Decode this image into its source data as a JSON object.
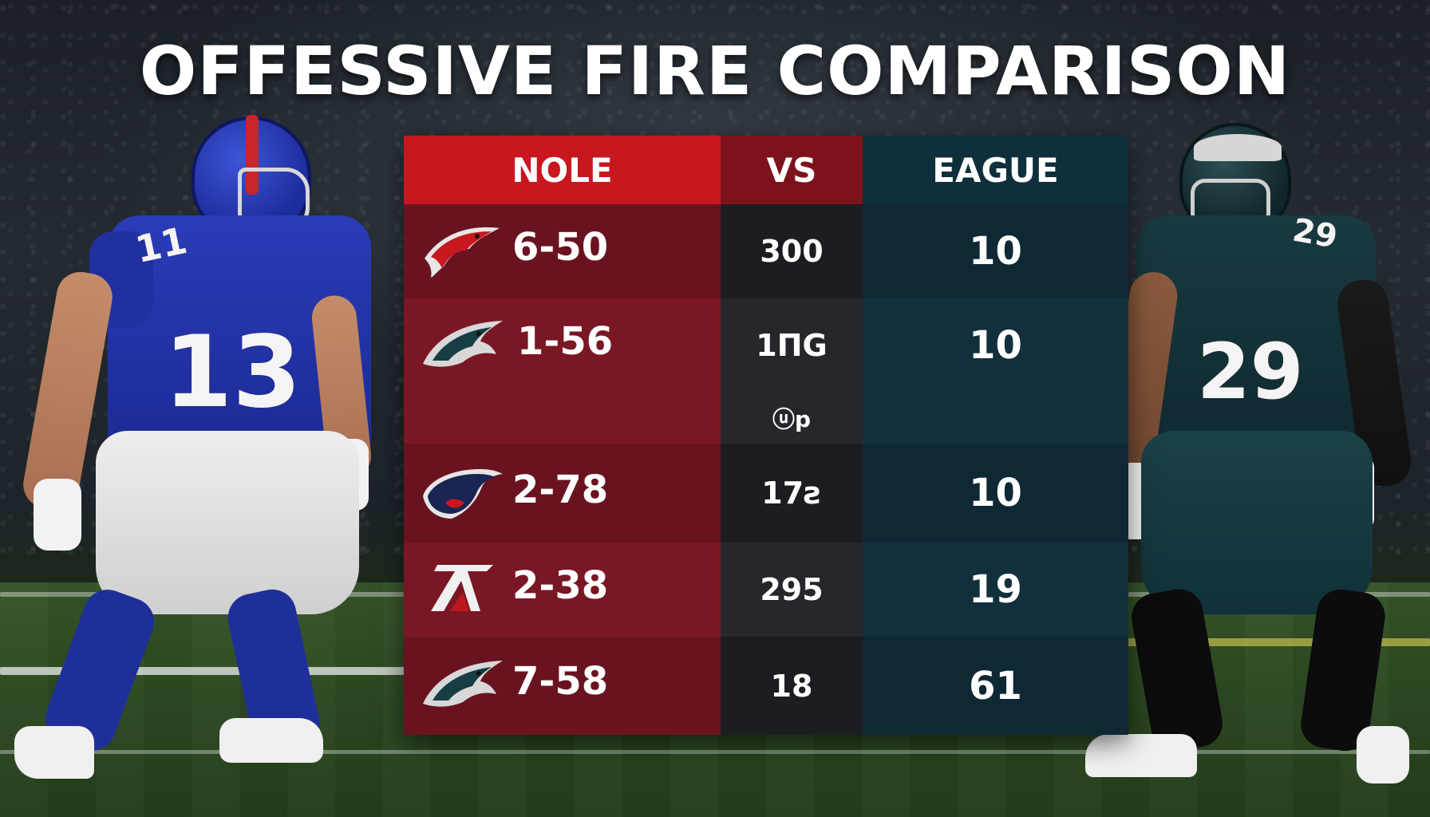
{
  "title": "OFFESSIVE FIRE COMPARISON",
  "colors": {
    "left_header": "#c8171f",
    "mid_header": "#7e121c",
    "right_header": "#0e2f3b",
    "left_body": "#6d1420",
    "mid_body": "#1e1f22",
    "right_body": "#0f2a36"
  },
  "players": {
    "left": {
      "jersey_number": "13",
      "shoulder_number": "11",
      "team_color": "#1e2f8c"
    },
    "right": {
      "jersey_number": "29",
      "shoulder_number": "29",
      "team_color": "#163238"
    }
  },
  "table": {
    "headers": {
      "left": "NOLE",
      "mid": "VS",
      "right": "EAGUE"
    },
    "rows": [
      {
        "logo": "falcon-logo-icon",
        "record": "6-50",
        "mid": "300",
        "right": "10"
      },
      {
        "logo": "eagle-logo-icon",
        "record": "1-56",
        "mid": "1ΠG",
        "right": "10"
      },
      {
        "logo": "",
        "record": "",
        "mid": "ⓤp",
        "right": ""
      },
      {
        "logo": "patriot-logo-icon",
        "record": "2-78",
        "mid": "17ƨ",
        "right": "10"
      },
      {
        "logo": "k-logo-icon",
        "record": "2-38",
        "mid": "295",
        "right": "19"
      },
      {
        "logo": "eagle-logo-icon",
        "record": "7-58",
        "mid": "18",
        "right": "61"
      }
    ]
  }
}
